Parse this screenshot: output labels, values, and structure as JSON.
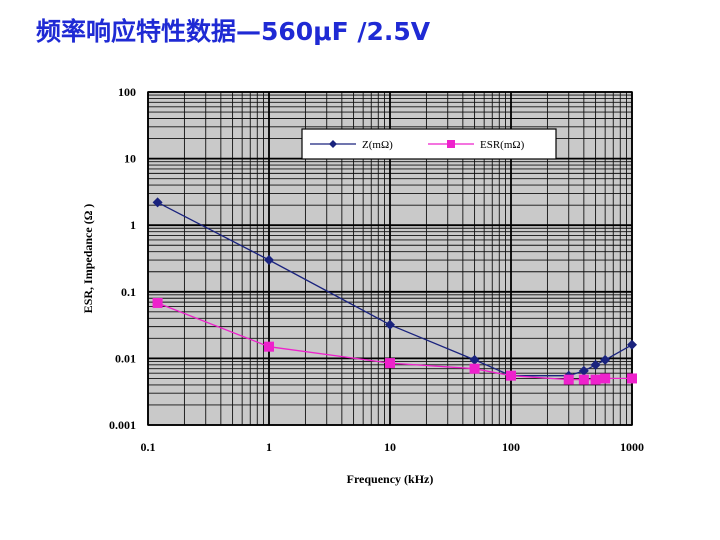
{
  "slide": {
    "title": "频率响应特性数据—560μF /2.5V"
  },
  "chart_data": {
    "type": "line",
    "xlabel": "Frequency (kHz)",
    "ylabel": "ESR, Impedance (Ω )",
    "x_scale": "log",
    "y_scale": "log",
    "xlim": [
      0.1,
      1000
    ],
    "ylim": [
      0.001,
      100
    ],
    "x_ticks": [
      "0.1",
      "1",
      "10",
      "100",
      "1000"
    ],
    "y_ticks": [
      "0.001",
      "0.01",
      "0.1",
      "1",
      "10",
      "100"
    ],
    "grid": true,
    "legend_position": "top-right",
    "series": [
      {
        "name": "Z(mΩ)",
        "color": "#1a237e",
        "marker": "diamond",
        "x": [
          0.12,
          1,
          10,
          50,
          100,
          300,
          400,
          500,
          600,
          1000
        ],
        "y": [
          2.2,
          0.3,
          0.032,
          0.0095,
          0.0055,
          0.0055,
          0.0065,
          0.008,
          0.0095,
          0.016
        ]
      },
      {
        "name": "ESR(mΩ)",
        "color": "#ee22cc",
        "marker": "square",
        "x": [
          0.12,
          1,
          10,
          50,
          100,
          300,
          400,
          500,
          600,
          1000
        ],
        "y": [
          0.068,
          0.015,
          0.0085,
          0.007,
          0.0055,
          0.0048,
          0.0048,
          0.0048,
          0.005,
          0.005
        ]
      }
    ]
  }
}
